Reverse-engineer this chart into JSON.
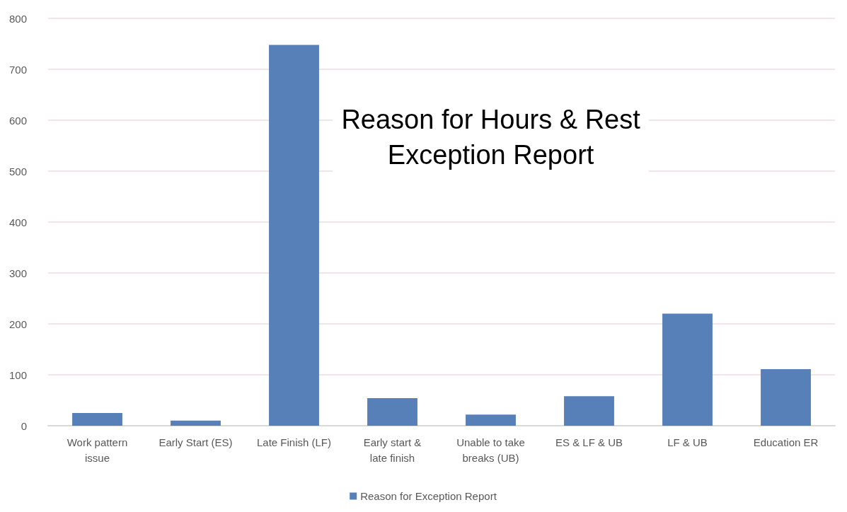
{
  "chart_data": {
    "type": "bar",
    "title": "Reason for Hours & Rest\nException Report",
    "categories": [
      "Work pattern\nissue",
      "Early Start (ES)",
      "Late Finish (LF)",
      "Early start &\nlate finish",
      "Unable to take\nbreaks (UB)",
      "ES & LF & UB",
      "LF & UB",
      "Education ER"
    ],
    "series": [
      {
        "name": "Reason for Exception Report",
        "color": "#5880b8",
        "values": [
          25,
          10,
          748,
          54,
          22,
          58,
          220,
          111
        ]
      }
    ],
    "ylim": [
      0,
      800
    ],
    "yticks": [
      0,
      100,
      200,
      300,
      400,
      500,
      600,
      700,
      800
    ],
    "grid": "y",
    "legend": "bottom"
  }
}
